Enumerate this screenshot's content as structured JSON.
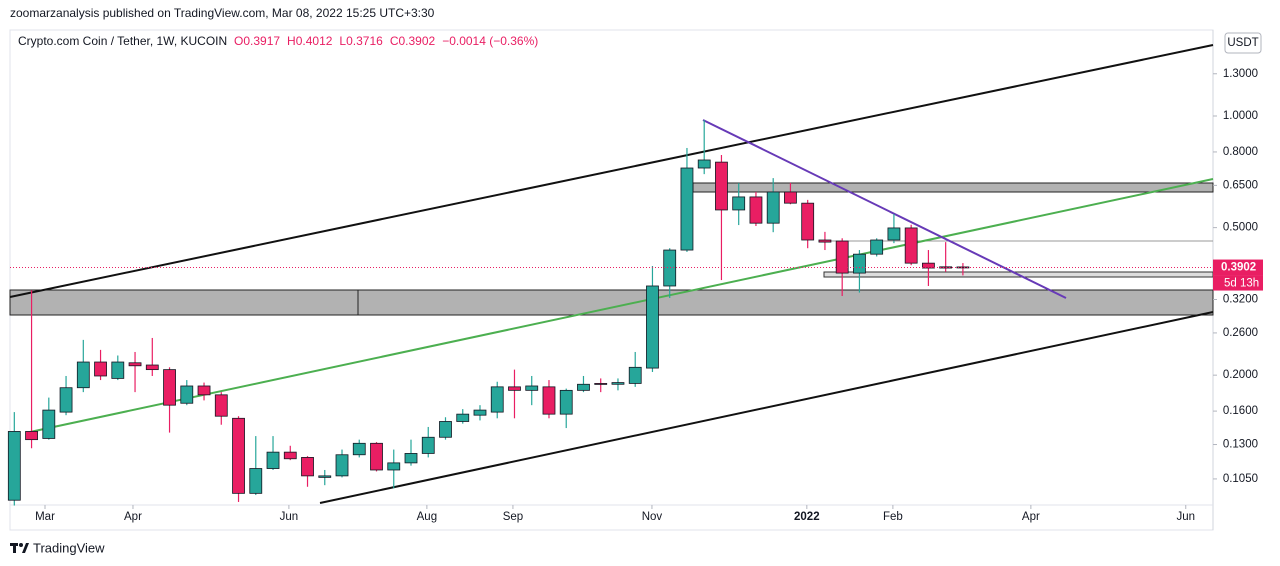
{
  "publisher": "zoomarzanalysis published on TradingView.com, Mar 08, 2022 15:25 UTC+3:30",
  "footer": "TradingView",
  "chart_data": {
    "type": "candlestick",
    "title": "Crypto.com Coin / Tether, 1W, KUCOIN",
    "ohlc_header": [
      "O0.3917",
      "H0.4012",
      "L0.3716",
      "C0.3902",
      "−0.0014 (−0.36%)"
    ],
    "currency": "USDT",
    "log_scale": true,
    "up_color": "#26a69a",
    "down_color": "#e91e63",
    "last_price": 0.3902,
    "countdown": "5d 13h",
    "open": [
      0.092,
      0.141,
      0.135,
      0.159,
      0.185,
      0.217,
      0.196,
      0.216,
      0.213,
      0.207,
      0.168,
      0.187,
      0.177,
      0.153,
      0.096,
      0.112,
      0.124,
      0.12,
      0.106,
      0.107,
      0.122,
      0.131,
      0.111,
      0.116,
      0.123,
      0.136,
      0.15,
      0.156,
      0.159,
      0.186,
      0.182,
      0.186,
      0.157,
      0.182,
      0.19,
      0.189,
      0.19,
      0.209,
      0.348,
      0.435,
      0.724,
      0.751,
      0.558,
      0.605,
      0.514,
      0.624,
      0.582,
      0.463,
      0.46,
      0.377,
      0.424,
      0.463,
      0.499,
      0.401,
      0.392,
      0.3917
    ],
    "high": [
      0.159,
      0.339,
      0.174,
      0.199,
      0.249,
      0.234,
      0.226,
      0.231,
      0.252,
      0.21,
      0.194,
      0.191,
      0.18,
      0.155,
      0.137,
      0.137,
      0.129,
      0.121,
      0.111,
      0.126,
      0.134,
      0.132,
      0.126,
      0.134,
      0.145,
      0.154,
      0.162,
      0.166,
      0.192,
      0.207,
      0.199,
      0.194,
      0.184,
      0.199,
      0.196,
      0.196,
      0.231,
      0.394,
      0.44,
      0.82,
      0.975,
      0.785,
      0.659,
      0.624,
      0.68,
      0.66,
      0.594,
      0.487,
      0.468,
      0.435,
      0.468,
      0.544,
      0.509,
      0.435,
      0.457,
      0.4012
    ],
    "low": [
      0.089,
      0.127,
      0.134,
      0.156,
      0.18,
      0.194,
      0.194,
      0.18,
      0.199,
      0.14,
      0.166,
      0.171,
      0.147,
      0.091,
      0.095,
      0.111,
      0.118,
      0.1,
      0.101,
      0.106,
      0.12,
      0.11,
      0.099,
      0.114,
      0.12,
      0.134,
      0.148,
      0.151,
      0.153,
      0.153,
      0.166,
      0.153,
      0.144,
      0.18,
      0.18,
      0.182,
      0.186,
      0.204,
      0.323,
      0.43,
      0.697,
      0.361,
      0.508,
      0.505,
      0.486,
      0.578,
      0.44,
      0.435,
      0.327,
      0.334,
      0.418,
      0.454,
      0.396,
      0.348,
      0.38,
      0.3716
    ],
    "close": [
      0.141,
      0.134,
      0.161,
      0.185,
      0.217,
      0.199,
      0.217,
      0.212,
      0.207,
      0.166,
      0.187,
      0.177,
      0.155,
      0.096,
      0.112,
      0.124,
      0.119,
      0.107,
      0.107,
      0.122,
      0.131,
      0.111,
      0.116,
      0.123,
      0.136,
      0.15,
      0.157,
      0.161,
      0.186,
      0.182,
      0.187,
      0.157,
      0.182,
      0.189,
      0.189,
      0.191,
      0.21,
      0.348,
      0.435,
      0.724,
      0.761,
      0.558,
      0.605,
      0.514,
      0.624,
      0.582,
      0.463,
      0.457,
      0.377,
      0.424,
      0.463,
      0.499,
      0.401,
      0.389,
      0.389,
      0.3902
    ],
    "xlim": [
      -0.25,
      69.5
    ],
    "xticks": [
      {
        "value": 1.78,
        "label": "Mar"
      },
      {
        "value": 6.88,
        "label": "Apr"
      },
      {
        "value": 15.92,
        "label": "Jun"
      },
      {
        "value": 23.92,
        "label": "Aug"
      },
      {
        "value": 28.91,
        "label": "Sep"
      },
      {
        "value": 36.97,
        "label": "Nov"
      },
      {
        "value": 45.95,
        "label": "2022"
      },
      {
        "value": 50.94,
        "label": "Feb"
      },
      {
        "value": 58.94,
        "label": "Apr"
      },
      {
        "value": 67.92,
        "label": "Jun"
      }
    ],
    "ylim": [
      0.0893,
      1.706
    ],
    "yticks": [
      {
        "value": 1.3,
        "label": "1.3000"
      },
      {
        "value": 1.0,
        "label": "1.0000"
      },
      {
        "value": 0.8,
        "label": "0.8000"
      },
      {
        "value": 0.65,
        "label": "0.6500"
      },
      {
        "value": 0.5,
        "label": "0.5000"
      },
      {
        "value": 0.32,
        "label": "0.3200"
      },
      {
        "value": 0.26,
        "label": "0.2600"
      },
      {
        "value": 0.2,
        "label": "0.2000"
      },
      {
        "value": 0.16,
        "label": "0.1600"
      },
      {
        "value": 0.13,
        "label": "0.1300"
      },
      {
        "value": 0.105,
        "label": "0.1050"
      }
    ]
  }
}
